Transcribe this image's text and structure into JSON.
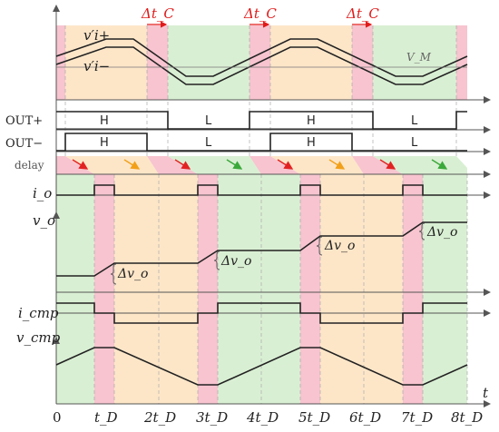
{
  "time_labels": {
    "t0": "0",
    "t1": "t_D",
    "t2": "2t_D",
    "t3": "3t_D",
    "t4": "4t_D",
    "t5": "5t_D",
    "t6": "6t_D",
    "t7": "7t_D",
    "t8": "8t_D",
    "t_axis": "t"
  },
  "labels": {
    "vi_plus": "v′i+",
    "vi_minus": "v′i−",
    "vm": "V_M",
    "dtc": "Δt_C",
    "out_plus": "OUT+",
    "out_minus": "OUT−",
    "delay": "delay",
    "io": "i_o",
    "vo": "v_o",
    "icmp": "i_cmp",
    "vcmp": "v_cmp",
    "dvo": "Δv_o",
    "H": "H",
    "L": "L"
  },
  "colors": {
    "pink": "#f7c4cf",
    "orange": "#fde6c8",
    "green": "#d9efd3",
    "red_text": "#e01b1b",
    "arrow_red": "#e22222",
    "arrow_orange": "#f2a01a",
    "arrow_green": "#3aa83a"
  }
}
